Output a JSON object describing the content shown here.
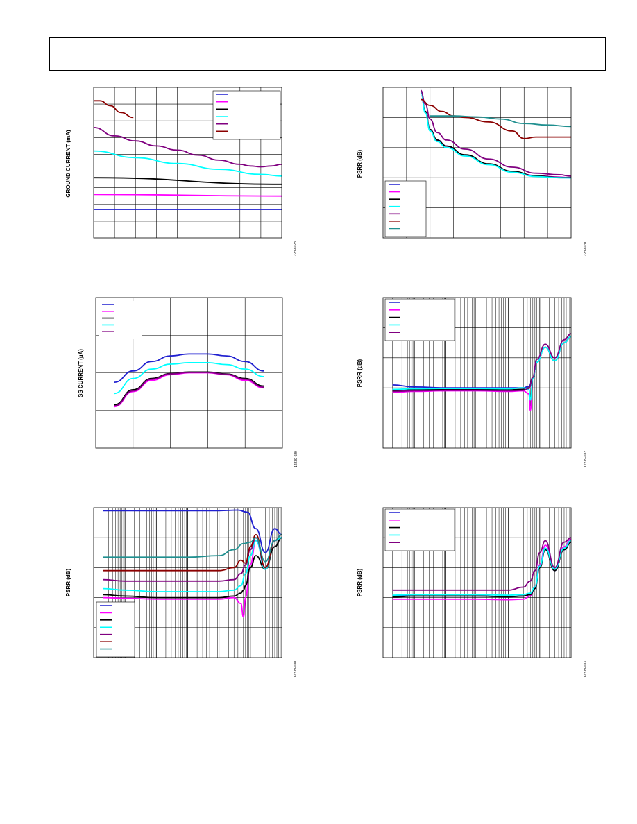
{
  "page": {
    "header": ""
  },
  "chart_data": [
    {
      "id": "ground-current",
      "type": "line",
      "ylabel": "GROUND CURRENT (mA)",
      "figure_id": "12239-028",
      "xlim": [
        0,
        9
      ],
      "ylim": [
        0,
        9
      ],
      "grid_x": 9,
      "grid_y": 9,
      "legend": {
        "placement": "top-right",
        "boxed": true
      },
      "series": [
        {
          "color": "#1f1fd0",
          "x": [
            0,
            9
          ],
          "y": [
            1.7,
            1.7
          ]
        },
        {
          "color": "#ff00ff",
          "x": [
            0,
            9
          ],
          "y": [
            2.6,
            2.5
          ]
        },
        {
          "color": "#000000",
          "x": [
            0,
            9
          ],
          "y": [
            3.6,
            3.2
          ]
        },
        {
          "color": "#00ffff",
          "x": [
            0,
            2,
            4,
            6,
            8,
            9
          ],
          "y": [
            5.2,
            4.8,
            4.45,
            4.1,
            3.8,
            3.7
          ]
        },
        {
          "color": "#800080",
          "x": [
            0,
            1,
            2,
            3,
            4,
            5,
            6,
            7,
            7.5,
            8,
            8.5,
            9
          ],
          "y": [
            6.6,
            6.1,
            5.8,
            5.5,
            5.25,
            4.95,
            4.65,
            4.4,
            4.3,
            4.25,
            4.3,
            4.4
          ]
        },
        {
          "color": "#8b0000",
          "x": [
            0,
            0.3,
            0.8,
            1.3,
            1.9
          ],
          "y": [
            8.2,
            8.2,
            7.9,
            7.5,
            7.2
          ]
        }
      ]
    },
    {
      "id": "psrr-vs-dropout",
      "type": "line",
      "ylabel": "PSRR (dB)",
      "figure_id": "12239-031",
      "xlim": [
        0,
        8
      ],
      "ylim": [
        0,
        5
      ],
      "grid_x": 8,
      "grid_y": 5,
      "legend": {
        "placement": "bottom-left",
        "boxed": true
      },
      "series": [
        {
          "color": "#1f1fd0",
          "x": [
            1.6,
            1.8,
            2,
            2.3,
            2.7,
            3.5,
            4.5,
            5.5,
            6.5,
            7.5,
            8
          ],
          "y": [
            4.9,
            4.2,
            3.6,
            3.25,
            3.05,
            2.75,
            2.45,
            2.2,
            2.05,
            2.0,
            2.0
          ]
        },
        {
          "color": "#ff00ff",
          "x": [
            1.6,
            1.8,
            2,
            2.3,
            2.7,
            3.5,
            4.5,
            5.5,
            6.5,
            7.5,
            8
          ],
          "y": [
            4.9,
            4.2,
            3.6,
            3.25,
            3.05,
            2.75,
            2.45,
            2.2,
            2.07,
            2.02,
            2.0
          ]
        },
        {
          "color": "#000000",
          "x": [
            1.6,
            1.8,
            2,
            2.3,
            2.7,
            3.5,
            4.5,
            5.5,
            6.5,
            7.5,
            8
          ],
          "y": [
            4.9,
            4.2,
            3.6,
            3.25,
            3.05,
            2.76,
            2.46,
            2.21,
            2.06,
            2.01,
            2.0
          ]
        },
        {
          "color": "#00ffff",
          "x": [
            1.6,
            1.8,
            2,
            2.3,
            2.7,
            3.5,
            4.5,
            5.5,
            6.5,
            7.5,
            8
          ],
          "y": [
            4.9,
            4.15,
            3.55,
            3.2,
            3.0,
            2.72,
            2.43,
            2.18,
            2.04,
            2.0,
            1.99
          ]
        },
        {
          "color": "#800080",
          "x": [
            1.6,
            1.8,
            2,
            2.3,
            2.7,
            3.5,
            4.5,
            5.5,
            6.5,
            7.5,
            8
          ],
          "y": [
            4.9,
            4.45,
            3.95,
            3.5,
            3.25,
            2.95,
            2.62,
            2.35,
            2.15,
            2.1,
            2.05
          ]
        },
        {
          "color": "#8b0000",
          "x": [
            1.6,
            2,
            2.5,
            3,
            3.5,
            4.5,
            5.5,
            6,
            6.5,
            7,
            7.5,
            8
          ],
          "y": [
            4.6,
            4.4,
            4.2,
            4.05,
            4.0,
            3.85,
            3.55,
            3.3,
            3.35,
            3.35,
            3.35,
            3.35
          ]
        },
        {
          "color": "#1f8f8f",
          "x": [
            2,
            3,
            4,
            5,
            6,
            7,
            8
          ],
          "y": [
            4.05,
            4.05,
            4.02,
            3.95,
            3.8,
            3.75,
            3.7
          ]
        }
      ]
    },
    {
      "id": "ss-current",
      "type": "line",
      "ylabel": "SS CURRENT (µA)",
      "figure_id": "12239-029",
      "xlim": [
        0,
        5
      ],
      "ylim": [
        0,
        4
      ],
      "grid_x": 5,
      "grid_y": 4,
      "legend": {
        "placement": "top-left",
        "boxed": false
      },
      "series": [
        {
          "color": "#1f1fd0",
          "x": [
            0.5,
            1,
            1.5,
            2,
            2.5,
            3,
            3.5,
            4,
            4.5
          ],
          "y": [
            1.75,
            2.05,
            2.3,
            2.45,
            2.5,
            2.5,
            2.45,
            2.3,
            2.05
          ]
        },
        {
          "color": "#ff00ff",
          "x": [
            0.5,
            1,
            1.5,
            2,
            2.5,
            3,
            3.5,
            4,
            4.5
          ],
          "y": [
            1.1,
            1.5,
            1.8,
            1.95,
            2.0,
            2.0,
            1.95,
            1.8,
            1.6
          ]
        },
        {
          "color": "#000000",
          "x": [
            0.5,
            1,
            1.5,
            2,
            2.5,
            3,
            3.5,
            4,
            4.5
          ],
          "y": [
            1.15,
            1.55,
            1.85,
            1.98,
            2.02,
            2.02,
            1.97,
            1.85,
            1.65
          ]
        },
        {
          "color": "#00ffff",
          "x": [
            0.5,
            1,
            1.5,
            2,
            2.5,
            3,
            3.5,
            4,
            4.5
          ],
          "y": [
            1.45,
            1.85,
            2.1,
            2.23,
            2.27,
            2.27,
            2.22,
            2.1,
            1.9
          ]
        },
        {
          "color": "#800080",
          "x": [
            0.5,
            1,
            1.5,
            2,
            2.5,
            3,
            3.5,
            4,
            4.5
          ],
          "y": [
            1.12,
            1.52,
            1.83,
            1.97,
            2.01,
            2.01,
            1.96,
            1.83,
            1.62
          ]
        }
      ]
    },
    {
      "id": "psrr-freq-a",
      "type": "line",
      "ylabel": "PSRR (dB)",
      "figure_id": "12239-032",
      "xscale": "log",
      "xlim": [
        1,
        1000000
      ],
      "ylim": [
        0,
        5
      ],
      "grid_y": 5,
      "legend": {
        "placement": "top-left",
        "boxed": true
      },
      "series": [
        {
          "color": "#1f1fd0",
          "x": [
            2,
            10,
            100,
            1000,
            10000,
            30000,
            45000,
            60000,
            80000,
            150000,
            300000,
            600000,
            1000000
          ],
          "y": [
            2.1,
            2.03,
            2.0,
            2.0,
            2.0,
            2.0,
            2.05,
            2.3,
            2.85,
            3.35,
            2.9,
            3.5,
            3.7
          ]
        },
        {
          "color": "#ff00ff",
          "x": [
            2,
            10,
            100,
            1000,
            10000,
            30000,
            45000,
            50000,
            60000,
            80000,
            150000,
            300000,
            600000,
            1000000
          ],
          "y": [
            1.85,
            1.88,
            1.9,
            1.9,
            1.88,
            1.9,
            1.8,
            1.25,
            2.3,
            2.85,
            3.35,
            2.9,
            3.5,
            3.7
          ]
        },
        {
          "color": "#000000",
          "x": [
            2,
            10,
            100,
            1000,
            10000,
            30000,
            45000,
            60000,
            80000,
            150000,
            300000,
            600000,
            1000000
          ],
          "y": [
            1.9,
            1.93,
            1.95,
            1.95,
            1.93,
            1.95,
            2.0,
            2.3,
            2.85,
            3.35,
            2.9,
            3.5,
            3.7
          ]
        },
        {
          "color": "#00ffff",
          "x": [
            2,
            10,
            100,
            1000,
            10000,
            30000,
            45000,
            50000,
            60000,
            80000,
            150000,
            300000,
            600000,
            1000000
          ],
          "y": [
            1.95,
            1.97,
            1.98,
            1.98,
            1.97,
            2.0,
            1.95,
            1.6,
            2.3,
            2.85,
            3.35,
            2.9,
            3.5,
            3.7
          ]
        },
        {
          "color": "#800080",
          "x": [
            2,
            10,
            100,
            1000,
            10000,
            30000,
            45000,
            60000,
            80000,
            150000,
            300000,
            600000,
            1000000
          ],
          "y": [
            1.88,
            1.9,
            1.92,
            1.92,
            1.9,
            1.92,
            1.98,
            2.35,
            2.95,
            3.45,
            3.0,
            3.6,
            3.8
          ]
        }
      ]
    },
    {
      "id": "psrr-freq-b",
      "type": "line",
      "ylabel": "PSRR (dB)",
      "figure_id": "12239-030",
      "xscale": "log",
      "xlim": [
        1,
        1000000
      ],
      "ylim": [
        0,
        5
      ],
      "grid_y": 5,
      "legend": {
        "placement": "bottom-left",
        "boxed": true
      },
      "series": [
        {
          "color": "#1f1fd0",
          "x": [
            2,
            10,
            100,
            1000,
            10000,
            40000,
            80000,
            150000,
            300000,
            600000,
            1000000
          ],
          "y": [
            4.9,
            4.9,
            4.9,
            4.9,
            4.9,
            4.92,
            4.85,
            4.3,
            3.5,
            4.3,
            4.1
          ]
        },
        {
          "color": "#ff00ff",
          "x": [
            2,
            10,
            100,
            1000,
            10000,
            30000,
            50000,
            60000,
            70000,
            100000,
            150000,
            300000,
            600000,
            1000000
          ],
          "y": [
            2.0,
            1.98,
            1.95,
            1.95,
            1.95,
            2.0,
            1.8,
            1.35,
            2.0,
            3.1,
            3.9,
            2.95,
            3.9,
            4.0
          ]
        },
        {
          "color": "#000000",
          "x": [
            2,
            10,
            100,
            1000,
            10000,
            30000,
            50000,
            60000,
            70000,
            100000,
            150000,
            300000,
            600000,
            1000000
          ],
          "y": [
            2.1,
            2.05,
            2.0,
            2.0,
            2.0,
            2.05,
            2.15,
            2.25,
            2.4,
            3.0,
            3.4,
            2.95,
            3.7,
            4.0
          ]
        },
        {
          "color": "#00ffff",
          "x": [
            2,
            10,
            100,
            1000,
            10000,
            30000,
            50000,
            70000,
            100000,
            150000,
            300000,
            600000,
            1000000
          ],
          "y": [
            2.3,
            2.25,
            2.2,
            2.2,
            2.2,
            2.25,
            2.4,
            2.8,
            3.4,
            3.9,
            2.95,
            3.9,
            4.0
          ]
        },
        {
          "color": "#800080",
          "x": [
            2,
            10,
            100,
            1000,
            10000,
            30000,
            50000,
            70000,
            100000,
            150000,
            300000,
            600000,
            1000000
          ],
          "y": [
            2.6,
            2.55,
            2.55,
            2.55,
            2.55,
            2.6,
            2.8,
            3.1,
            3.6,
            4.0,
            3.0,
            3.9,
            4.1
          ]
        },
        {
          "color": "#8b0000",
          "x": [
            2,
            10,
            100,
            1000,
            10000,
            30000,
            50000,
            70000,
            100000,
            150000,
            300000,
            600000,
            1000000
          ],
          "y": [
            2.9,
            2.9,
            2.9,
            2.9,
            2.9,
            3.0,
            3.25,
            3.15,
            3.7,
            4.1,
            3.0,
            3.9,
            4.1
          ]
        },
        {
          "color": "#1f8f8f",
          "x": [
            2,
            10,
            100,
            1000,
            10000,
            30000,
            60000,
            100000,
            150000,
            300000,
            600000,
            1000000
          ],
          "y": [
            3.35,
            3.35,
            3.35,
            3.35,
            3.4,
            3.6,
            3.8,
            3.85,
            4.0,
            3.2,
            3.9,
            4.1
          ]
        }
      ]
    },
    {
      "id": "psrr-freq-c",
      "type": "line",
      "ylabel": "PSRR (dB)",
      "figure_id": "12239-033",
      "xscale": "log",
      "xlim": [
        1,
        1000000
      ],
      "ylim": [
        0,
        5
      ],
      "grid_y": 5,
      "legend": {
        "placement": "top-left",
        "boxed": true
      },
      "series": [
        {
          "color": "#1f1fd0",
          "x": [
            2,
            10,
            100,
            1000,
            10000,
            30000,
            50000,
            70000,
            100000,
            150000,
            300000,
            600000,
            1000000
          ],
          "y": [
            2.05,
            2.05,
            2.05,
            2.05,
            2.03,
            2.05,
            2.1,
            2.3,
            3.0,
            3.6,
            2.9,
            3.6,
            3.85
          ]
        },
        {
          "color": "#ff00ff",
          "x": [
            2,
            10,
            100,
            1000,
            10000,
            30000,
            50000,
            70000,
            100000,
            150000,
            300000,
            600000,
            1000000
          ],
          "y": [
            1.95,
            1.95,
            1.95,
            1.95,
            1.93,
            1.95,
            2.05,
            2.35,
            3.1,
            3.75,
            3.0,
            3.7,
            3.95
          ]
        },
        {
          "color": "#000000",
          "x": [
            2,
            10,
            100,
            1000,
            10000,
            30000,
            50000,
            70000,
            100000,
            150000,
            300000,
            600000,
            1000000
          ],
          "y": [
            2.02,
            2.05,
            2.05,
            2.05,
            2.03,
            2.05,
            2.1,
            2.3,
            3.0,
            3.6,
            2.9,
            3.6,
            3.85
          ]
        },
        {
          "color": "#00ffff",
          "x": [
            2,
            10,
            100,
            1000,
            10000,
            30000,
            50000,
            70000,
            100000,
            150000,
            300000,
            600000,
            1000000
          ],
          "y": [
            2.08,
            2.1,
            2.1,
            2.1,
            2.08,
            2.1,
            2.15,
            2.35,
            3.05,
            3.65,
            2.95,
            3.65,
            3.9
          ]
        },
        {
          "color": "#800080",
          "x": [
            2,
            10,
            100,
            1000,
            10000,
            30000,
            50000,
            70000,
            100000,
            150000,
            300000,
            600000,
            1000000
          ],
          "y": [
            2.25,
            2.25,
            2.25,
            2.25,
            2.25,
            2.35,
            2.55,
            2.9,
            3.5,
            3.9,
            3.0,
            3.85,
            4.0
          ]
        }
      ]
    }
  ]
}
